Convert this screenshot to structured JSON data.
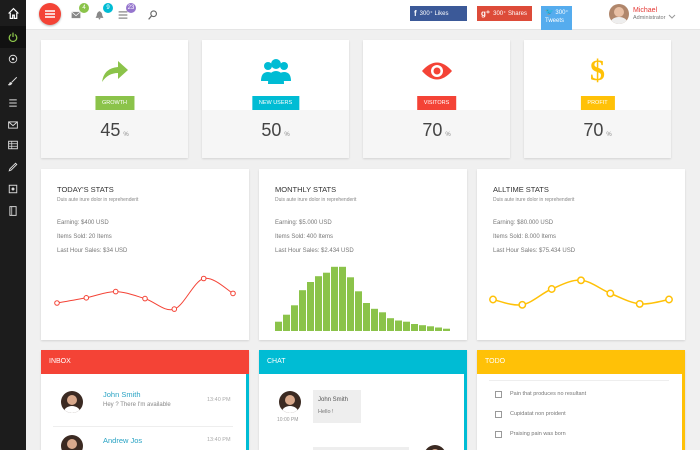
{
  "colors": {
    "red": "#f44336",
    "cyan": "#00bcd4",
    "yellow": "#ffc107",
    "green": "#8bc34a",
    "facebook": "#3b5998",
    "google": "#dd4b39",
    "twitter": "#55acee",
    "sidebar_bg": "#1c1c1c"
  },
  "sidebar": {
    "items": [
      {
        "icon": "home-icon"
      },
      {
        "icon": "power-icon"
      },
      {
        "icon": "settings-icon"
      },
      {
        "icon": "brush-icon"
      },
      {
        "icon": "list-icon"
      },
      {
        "icon": "mail-icon"
      },
      {
        "icon": "table-icon"
      },
      {
        "icon": "pencil-icon"
      },
      {
        "icon": "map-icon"
      },
      {
        "icon": "book-icon"
      }
    ]
  },
  "topbar": {
    "badges": {
      "mail": "4",
      "notifications": "9",
      "tasks": "23"
    },
    "social": {
      "facebook": "300⁺ Likes",
      "google": "300⁺ Shares",
      "twitter": "300⁺",
      "twitter_sub": "Tweets"
    },
    "user": {
      "name": "Michael",
      "role": "Administrator"
    }
  },
  "stats": [
    {
      "label": "GROWTH",
      "value": "45",
      "unit": "%",
      "icon": "share-arrow-icon"
    },
    {
      "label": "NEW USERS",
      "value": "50",
      "unit": "%",
      "icon": "users-icon"
    },
    {
      "label": "VISITORS",
      "value": "70",
      "unit": "%",
      "icon": "eye-icon"
    },
    {
      "label": "PROFIT",
      "value": "70",
      "unit": "%",
      "icon": "dollar-icon"
    }
  ],
  "panels": [
    {
      "title": "TODAY'S STATS",
      "subtitle": "Duis aute irure dolor in reprehenderit",
      "lines": [
        "Earning: $400 USD",
        "Items Sold: 20 Items",
        "Last Hour Sales: $34 USD"
      ]
    },
    {
      "title": "MONTHLY STATS",
      "subtitle": "Duis aute irure dolor in reprehenderit",
      "lines": [
        "Earning: $5.000 USD",
        "Items Sold: 400 Items",
        "Last Hour Sales: $2.434 USD"
      ]
    },
    {
      "title": "ALLTIME STATS",
      "subtitle": "Duis aute irure dolor in reprehenderit",
      "lines": [
        "Earning: $80.000 USD",
        "Items Sold: 8.000 Items",
        "Last Hour Sales: $75.434 USD"
      ]
    }
  ],
  "chart_data": [
    {
      "type": "line",
      "color": "#f44336",
      "values": [
        32,
        38,
        45,
        37,
        25,
        60,
        43
      ],
      "ylim": [
        0,
        80
      ]
    },
    {
      "type": "bar",
      "color": "#8bc34a",
      "values": [
        8,
        14,
        22,
        35,
        42,
        47,
        50,
        55,
        55,
        46,
        34,
        24,
        19,
        16,
        11,
        9,
        8,
        6,
        5,
        4,
        3,
        2
      ],
      "ylim": [
        0,
        60
      ]
    },
    {
      "type": "line",
      "color": "#ffc107",
      "values": [
        36,
        30,
        48,
        58,
        43,
        31,
        36
      ],
      "ylim": [
        0,
        80
      ]
    }
  ],
  "inbox": {
    "title": "INBOX",
    "items": [
      {
        "name": "John Smith",
        "message": "Hey ? There I'm available",
        "time": "13:40 PM"
      },
      {
        "name": "Andrew Jos",
        "message": "",
        "time": "13:40 PM"
      }
    ]
  },
  "chat": {
    "title": "CHAT",
    "messages": [
      {
        "name": "John Smith",
        "text": "Hello !",
        "time": "10:00 PM"
      }
    ]
  },
  "todo": {
    "title": "TODO",
    "items": [
      "Pain that produces no resultant",
      "Cupidatat non proident",
      "Praising pain was born"
    ]
  }
}
